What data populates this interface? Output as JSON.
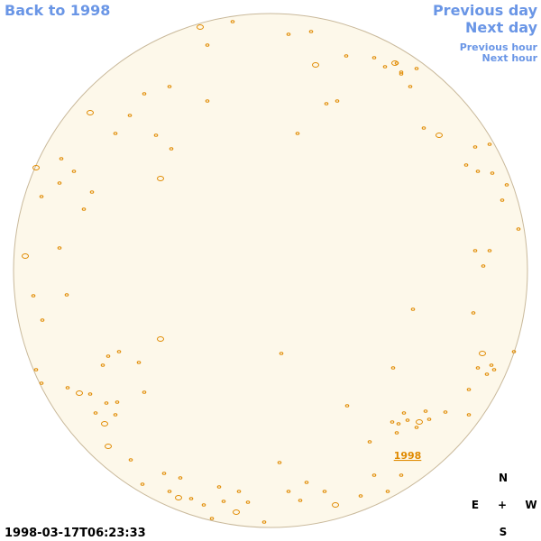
{
  "nav": {
    "back": "Back to 1998",
    "previous_day": "Previous day",
    "next_day": "Next day",
    "previous_hour": "Previous hour",
    "next_hour": "Next hour"
  },
  "region_label": "1998",
  "compass": {
    "north": "N",
    "east": "E",
    "center": "+",
    "west": "W",
    "south": "S"
  },
  "timestamp": "1998-03-17T06:23:33"
}
